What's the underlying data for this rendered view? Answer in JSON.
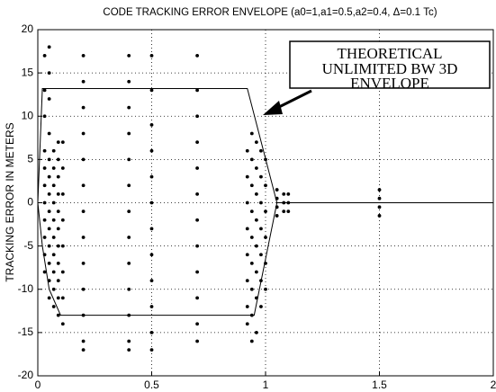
{
  "chart_data": {
    "type": "scatter",
    "title": "CODE TRACKING ERROR ENVELOPE (a0=1,a1=0.5,a2=0.4, Δ=0.1 Tc)",
    "y_label": "TRACKING ERROR IN METERS",
    "annotation": [
      "THEORETICAL",
      "UNLIMITED BW 3D",
      "ENVELOPE"
    ],
    "xlim": [
      0,
      2
    ],
    "xticks": [
      0,
      0.5,
      1,
      1.5,
      2
    ],
    "ylim": [
      -20,
      20
    ],
    "yticks": [
      -20,
      -15,
      -10,
      -5,
      0,
      5,
      10,
      15,
      20
    ],
    "grid": true,
    "color": "#000000",
    "scatter": {
      "x": [
        0.03,
        0.03,
        0.03,
        0.03,
        0.03,
        0.03,
        0.03,
        0.03,
        0.03,
        0.03,
        0.03,
        0.05,
        0.05,
        0.05,
        0.05,
        0.05,
        0.05,
        0.05,
        0.05,
        0.05,
        0.05,
        0.05,
        0.05,
        0.05,
        0.07,
        0.07,
        0.07,
        0.07,
        0.07,
        0.07,
        0.07,
        0.07,
        0.07,
        0.07,
        0.09,
        0.09,
        0.09,
        0.09,
        0.09,
        0.09,
        0.09,
        0.09,
        0.09,
        0.09,
        0.09,
        0.11,
        0.11,
        0.11,
        0.11,
        0.11,
        0.11,
        0.11,
        0.11,
        0.2,
        0.2,
        0.2,
        0.2,
        0.2,
        0.2,
        0.2,
        0.2,
        0.2,
        0.2,
        0.2,
        0.2,
        0.2,
        0.4,
        0.4,
        0.4,
        0.4,
        0.4,
        0.4,
        0.4,
        0.4,
        0.4,
        0.4,
        0.4,
        0.4,
        0.4,
        0.5,
        0.5,
        0.5,
        0.5,
        0.5,
        0.5,
        0.5,
        0.5,
        0.5,
        0.5,
        0.5,
        0.5,
        0.7,
        0.7,
        0.7,
        0.7,
        0.7,
        0.7,
        0.7,
        0.7,
        0.7,
        0.7,
        0.7,
        0.7,
        0.92,
        0.92,
        0.92,
        0.92,
        0.92,
        0.92,
        0.92,
        0.92,
        0.94,
        0.94,
        0.94,
        0.94,
        0.94,
        0.94,
        0.94,
        0.94,
        0.94,
        0.96,
        0.96,
        0.96,
        0.96,
        0.96,
        0.96,
        0.96,
        0.96,
        0.98,
        0.98,
        0.98,
        0.98,
        0.98,
        0.98,
        0.98,
        1.0,
        1.0,
        1.0,
        1.0,
        1.0,
        1.0,
        1.05,
        1.05,
        1.05,
        1.05,
        1.08,
        1.08,
        1.08,
        1.1,
        1.1,
        1.1,
        1.5,
        1.5,
        1.5,
        1.5
      ],
      "y": [
        17,
        13,
        10,
        6,
        4,
        2,
        0,
        -2,
        -4,
        -6,
        -8,
        18,
        15,
        12,
        8,
        5,
        3,
        1,
        -1,
        -3,
        -5,
        -7,
        -9,
        -11,
        6,
        4,
        2,
        0,
        -2,
        -4,
        -6,
        -8,
        -10,
        -12,
        7,
        5,
        3,
        1,
        -1,
        -3,
        -5,
        -7,
        -9,
        -11,
        -13,
        7,
        4,
        1,
        -2,
        -5,
        -8,
        -11,
        -14,
        17,
        14,
        11,
        8,
        5,
        2,
        -1,
        -4,
        -7,
        -10,
        -13,
        -16,
        -17,
        17,
        14,
        11,
        8,
        5,
        2,
        -1,
        -4,
        -7,
        -10,
        -13,
        -16,
        -17,
        17,
        13,
        9,
        6,
        3,
        0,
        -3,
        -6,
        -9,
        -12,
        -15,
        -17,
        17,
        13,
        10,
        7,
        4,
        1,
        -2,
        -5,
        -8,
        -11,
        -14,
        -16,
        6,
        3,
        0,
        -3,
        -6,
        -9,
        -12,
        -14,
        8,
        5,
        2,
        -1,
        -4,
        -7,
        -10,
        -13,
        -16,
        7,
        4,
        1,
        -2,
        -5,
        -8,
        -11,
        -15,
        6,
        3,
        0,
        -3,
        -6,
        -9,
        -12,
        5,
        2,
        -1,
        -4,
        -7,
        -10,
        1.5,
        0.5,
        -0.5,
        -1.5,
        1,
        0,
        -1,
        1,
        0,
        -1,
        1.5,
        0.5,
        -0.5,
        -1.5
      ]
    },
    "lines": [
      {
        "x": [
          0,
          0.02,
          0.92,
          1.05,
          2
        ],
        "y": [
          0,
          13.2,
          13.2,
          0,
          0
        ]
      },
      {
        "x": [
          0,
          0.02,
          0.05,
          0.1,
          0.95,
          1.05
        ],
        "y": [
          0,
          -5,
          -10,
          -13,
          -13,
          0
        ]
      }
    ]
  }
}
